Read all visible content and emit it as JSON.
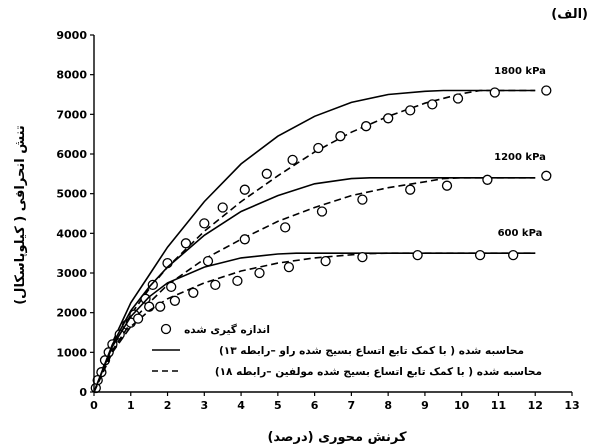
{
  "chart_data": {
    "type": "scatter",
    "panel_label": "(الف)",
    "xlabel": "کرنش محوری (درصد)",
    "ylabel": "تنش انحرافی ( کیلوپاسکال)",
    "xlim": [
      0,
      13
    ],
    "ylim": [
      0,
      9000
    ],
    "xticks": [
      0,
      1,
      2,
      3,
      4,
      5,
      6,
      7,
      8,
      9,
      10,
      11,
      12,
      13
    ],
    "yticks": [
      0,
      1000,
      2000,
      3000,
      4000,
      5000,
      6000,
      7000,
      8000,
      9000
    ],
    "annotations": [
      "1800 kPa",
      "1200 kPa",
      "600 kPa"
    ],
    "legend": {
      "position": "bottom-left",
      "measured": "اندازه گیری شده",
      "model_solid": "محاسبه شده ( با کمک تابع اتساع بسیج شده راو –رابطه ۱۳)",
      "model_dashed": "محاسبه شده ( با کمک تابع اتساع بسیج شده مولفین –رابطه ۱۸)"
    },
    "series": [
      {
        "name": "1800 kPa",
        "measured": [
          [
            0.05,
            100
          ],
          [
            0.1,
            300
          ],
          [
            0.2,
            500
          ],
          [
            0.3,
            800
          ],
          [
            0.4,
            1000
          ],
          [
            0.5,
            1200
          ],
          [
            0.7,
            1450
          ],
          [
            0.9,
            1700
          ],
          [
            1.1,
            1950
          ],
          [
            1.4,
            2350
          ],
          [
            1.6,
            2700
          ],
          [
            2.0,
            3250
          ],
          [
            2.5,
            3750
          ],
          [
            3.0,
            4250
          ],
          [
            3.5,
            4650
          ],
          [
            4.1,
            5100
          ],
          [
            4.7,
            5500
          ],
          [
            5.4,
            5850
          ],
          [
            6.1,
            6150
          ],
          [
            6.7,
            6450
          ],
          [
            7.4,
            6700
          ],
          [
            8.0,
            6900
          ],
          [
            8.6,
            7100
          ],
          [
            9.2,
            7250
          ],
          [
            9.9,
            7400
          ],
          [
            10.9,
            7550
          ],
          [
            12.3,
            7600
          ]
        ],
        "solid": [
          [
            0,
            0
          ],
          [
            0.5,
            1250
          ],
          [
            1,
            2250
          ],
          [
            1.5,
            2950
          ],
          [
            2,
            3650
          ],
          [
            3,
            4800
          ],
          [
            4,
            5750
          ],
          [
            5,
            6450
          ],
          [
            6,
            6950
          ],
          [
            7,
            7300
          ],
          [
            8,
            7500
          ],
          [
            9,
            7580
          ],
          [
            9.5,
            7600
          ],
          [
            10,
            7600
          ],
          [
            11,
            7600
          ],
          [
            12,
            7600
          ]
        ],
        "dashed": [
          [
            0,
            0
          ],
          [
            0.5,
            1100
          ],
          [
            1,
            1950
          ],
          [
            1.5,
            2600
          ],
          [
            2,
            3150
          ],
          [
            3,
            4050
          ],
          [
            4,
            4800
          ],
          [
            5,
            5450
          ],
          [
            6,
            6050
          ],
          [
            7,
            6550
          ],
          [
            8,
            6950
          ],
          [
            9,
            7280
          ],
          [
            10,
            7520
          ],
          [
            10.5,
            7600
          ],
          [
            11,
            7600
          ],
          [
            12,
            7600
          ]
        ]
      },
      {
        "name": "1200 kPa",
        "measured": [
          [
            1.0,
            1750
          ],
          [
            1.5,
            2150
          ],
          [
            2.1,
            2650
          ],
          [
            3.1,
            3300
          ],
          [
            4.1,
            3850
          ],
          [
            5.2,
            4150
          ],
          [
            6.2,
            4550
          ],
          [
            7.3,
            4850
          ],
          [
            8.6,
            5100
          ],
          [
            9.6,
            5200
          ],
          [
            10.7,
            5350
          ],
          [
            12.3,
            5450
          ]
        ],
        "solid": [
          [
            0,
            0
          ],
          [
            0.5,
            1200
          ],
          [
            1,
            2050
          ],
          [
            1.5,
            2650
          ],
          [
            2,
            3150
          ],
          [
            3,
            3950
          ],
          [
            4,
            4550
          ],
          [
            5,
            4950
          ],
          [
            6,
            5250
          ],
          [
            7,
            5380
          ],
          [
            7.5,
            5400
          ],
          [
            8,
            5400
          ],
          [
            9,
            5400
          ],
          [
            10,
            5400
          ],
          [
            11,
            5400
          ],
          [
            12,
            5400
          ]
        ],
        "dashed": [
          [
            0,
            0
          ],
          [
            0.5,
            1050
          ],
          [
            1,
            1750
          ],
          [
            1.5,
            2250
          ],
          [
            2,
            2700
          ],
          [
            3,
            3350
          ],
          [
            4,
            3850
          ],
          [
            5,
            4300
          ],
          [
            6,
            4650
          ],
          [
            7,
            4950
          ],
          [
            8,
            5150
          ],
          [
            9,
            5300
          ],
          [
            9.5,
            5380
          ],
          [
            10,
            5400
          ],
          [
            11,
            5400
          ],
          [
            12,
            5400
          ]
        ]
      },
      {
        "name": "600 kPa",
        "measured": [
          [
            1.2,
            1850
          ],
          [
            1.8,
            2150
          ],
          [
            2.2,
            2300
          ],
          [
            2.7,
            2500
          ],
          [
            3.3,
            2700
          ],
          [
            3.9,
            2800
          ],
          [
            4.5,
            3000
          ],
          [
            5.3,
            3150
          ],
          [
            6.3,
            3300
          ],
          [
            7.3,
            3400
          ],
          [
            8.8,
            3450
          ],
          [
            10.5,
            3450
          ],
          [
            11.4,
            3450
          ]
        ],
        "solid": [
          [
            0,
            0
          ],
          [
            0.5,
            1150
          ],
          [
            1,
            1900
          ],
          [
            1.5,
            2400
          ],
          [
            2,
            2750
          ],
          [
            3,
            3150
          ],
          [
            4,
            3380
          ],
          [
            5,
            3480
          ],
          [
            5.5,
            3500
          ],
          [
            6,
            3500
          ],
          [
            7,
            3500
          ],
          [
            8,
            3500
          ],
          [
            9,
            3500
          ],
          [
            10,
            3500
          ],
          [
            11,
            3500
          ],
          [
            12,
            3500
          ]
        ],
        "dashed": [
          [
            0,
            0
          ],
          [
            0.5,
            1000
          ],
          [
            1,
            1650
          ],
          [
            1.5,
            2050
          ],
          [
            2,
            2350
          ],
          [
            3,
            2750
          ],
          [
            4,
            3050
          ],
          [
            5,
            3250
          ],
          [
            6,
            3380
          ],
          [
            7,
            3460
          ],
          [
            7.5,
            3490
          ],
          [
            8,
            3500
          ],
          [
            9,
            3500
          ],
          [
            10,
            3500
          ],
          [
            11,
            3500
          ],
          [
            12,
            3500
          ]
        ]
      }
    ]
  }
}
